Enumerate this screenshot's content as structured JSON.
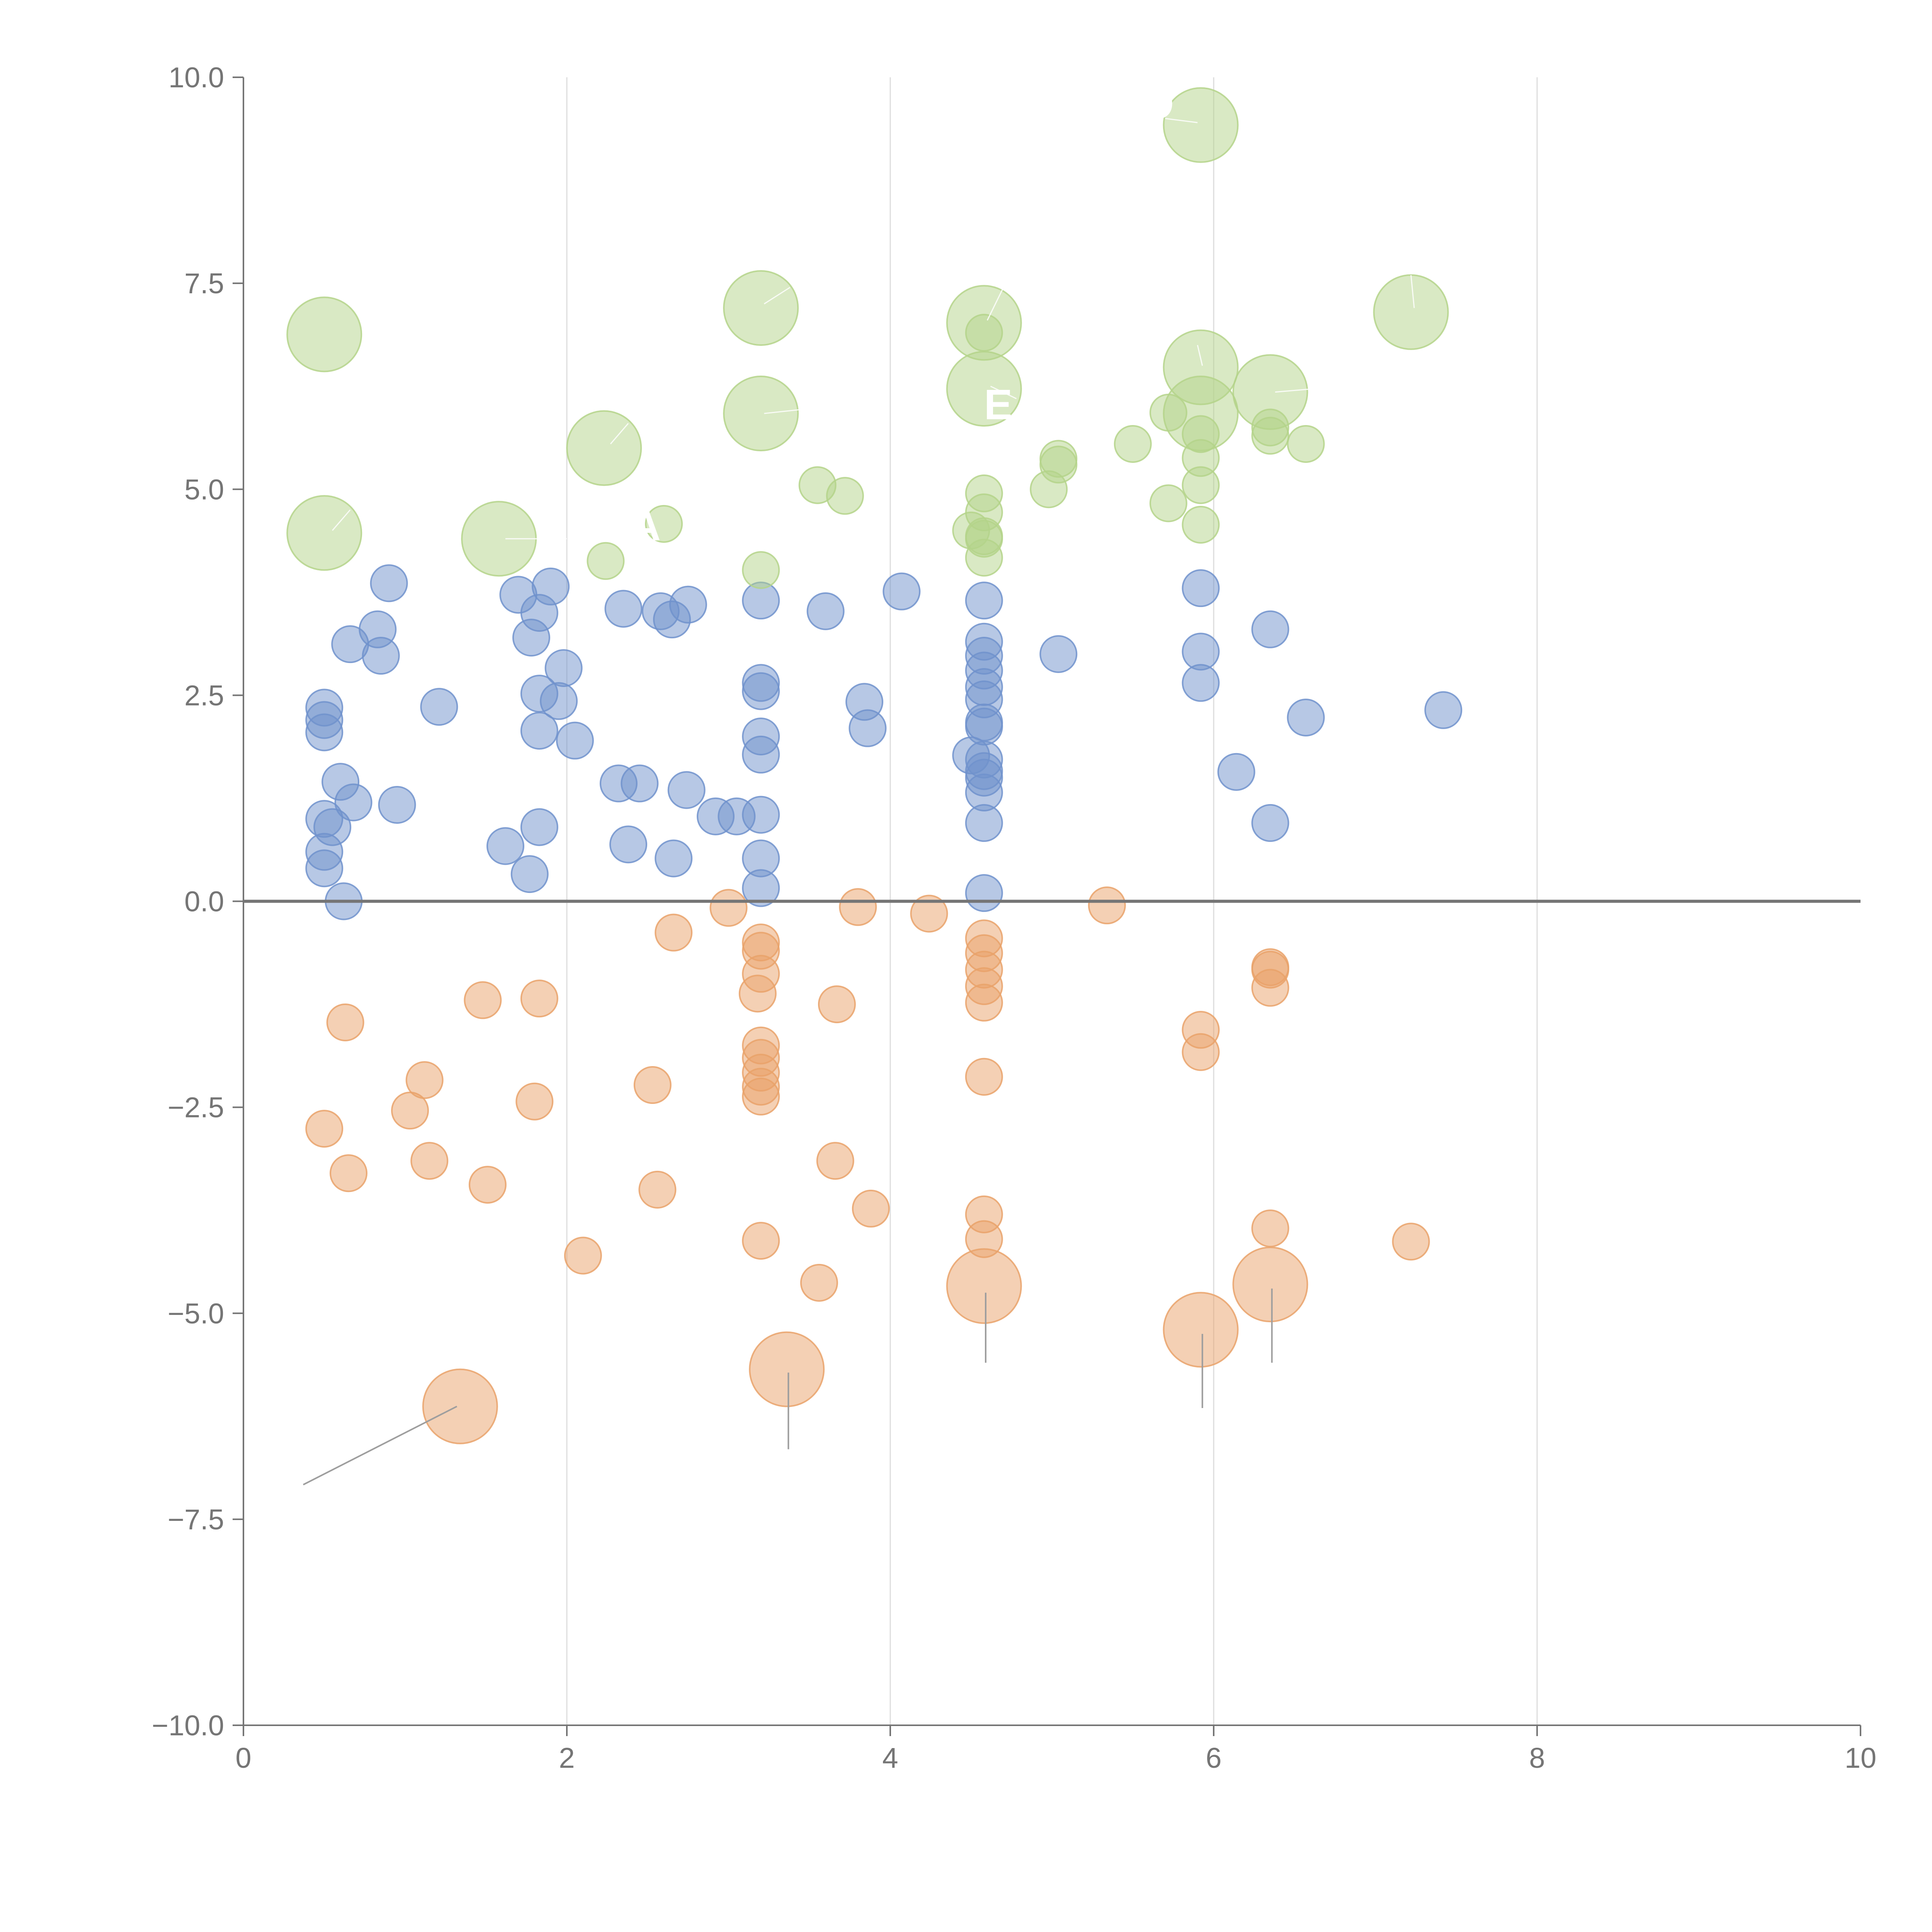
{
  "chart_data": {
    "type": "scatter",
    "subtype": "bubble",
    "title": "",
    "xlabel": "",
    "ylabel": "",
    "xlim": [
      0,
      10
    ],
    "ylim": [
      -10,
      10
    ],
    "x_ticks": [
      "0",
      "2",
      "4",
      "6",
      "8",
      "10"
    ],
    "y_ticks": [
      "10.0",
      "7.5",
      "5.0",
      "2.5",
      "0.0",
      "−2.5",
      "−5.0",
      "−7.5",
      "−10.0"
    ],
    "x_tick_values": [
      0,
      2,
      4,
      6,
      8,
      10
    ],
    "y_tick_values": [
      10,
      7.5,
      5,
      2.5,
      0,
      -2.5,
      -5,
      -7.5,
      -10
    ],
    "vertical_grid": true,
    "horizontal_grid": false,
    "zero_line": true,
    "legend": "none",
    "labels": [
      "O",
      "TA",
      "E"
    ],
    "series": [
      {
        "color": "#7092CC",
        "points": [
          {
            "x": 0.5,
            "y": 2.35
          },
          {
            "x": 0.5,
            "y": 2.2
          },
          {
            "x": 0.5,
            "y": 2.05
          },
          {
            "x": 0.5,
            "y": 1.0
          },
          {
            "x": 0.55,
            "y": 0.9
          },
          {
            "x": 0.5,
            "y": 0.6
          },
          {
            "x": 0.5,
            "y": 0.4
          },
          {
            "x": 0.62,
            "y": 0.0
          },
          {
            "x": 0.6,
            "y": 1.45
          },
          {
            "x": 0.68,
            "y": 1.2
          },
          {
            "x": 0.66,
            "y": 3.12
          },
          {
            "x": 0.83,
            "y": 3.3
          },
          {
            "x": 0.85,
            "y": 2.98
          },
          {
            "x": 0.9,
            "y": 3.86
          },
          {
            "x": 0.95,
            "y": 1.17
          },
          {
            "x": 1.21,
            "y": 2.36
          },
          {
            "x": 1.62,
            "y": 0.67
          },
          {
            "x": 1.77,
            "y": 0.33
          },
          {
            "x": 1.7,
            "y": 3.72
          },
          {
            "x": 1.78,
            "y": 3.2
          },
          {
            "x": 1.83,
            "y": 3.5
          },
          {
            "x": 1.9,
            "y": 3.82
          },
          {
            "x": 1.83,
            "y": 2.52
          },
          {
            "x": 1.95,
            "y": 2.43
          },
          {
            "x": 1.98,
            "y": 2.83
          },
          {
            "x": 1.83,
            "y": 2.07
          },
          {
            "x": 2.05,
            "y": 1.95
          },
          {
            "x": 1.83,
            "y": 0.9
          },
          {
            "x": 2.35,
            "y": 3.55
          },
          {
            "x": 2.58,
            "y": 3.52
          },
          {
            "x": 2.65,
            "y": 3.42
          },
          {
            "x": 2.75,
            "y": 3.6
          },
          {
            "x": 2.32,
            "y": 1.43
          },
          {
            "x": 2.45,
            "y": 1.43
          },
          {
            "x": 2.38,
            "y": 0.69
          },
          {
            "x": 2.66,
            "y": 0.52
          },
          {
            "x": 2.74,
            "y": 1.35
          },
          {
            "x": 2.92,
            "y": 1.03
          },
          {
            "x": 3.05,
            "y": 1.03
          },
          {
            "x": 3.2,
            "y": 3.65
          },
          {
            "x": 3.2,
            "y": 2.65
          },
          {
            "x": 3.2,
            "y": 2.55
          },
          {
            "x": 3.2,
            "y": 2.0
          },
          {
            "x": 3.2,
            "y": 1.78
          },
          {
            "x": 3.2,
            "y": 1.05
          },
          {
            "x": 3.2,
            "y": 0.52
          },
          {
            "x": 3.2,
            "y": 0.16
          },
          {
            "x": 3.6,
            "y": 3.52
          },
          {
            "x": 3.84,
            "y": 2.42
          },
          {
            "x": 3.86,
            "y": 2.1
          },
          {
            "x": 4.07,
            "y": 3.76
          },
          {
            "x": 4.58,
            "y": 3.65
          },
          {
            "x": 4.58,
            "y": 3.15
          },
          {
            "x": 4.58,
            "y": 2.98
          },
          {
            "x": 4.58,
            "y": 2.8
          },
          {
            "x": 4.58,
            "y": 2.6
          },
          {
            "x": 4.58,
            "y": 2.45
          },
          {
            "x": 4.58,
            "y": 2.17
          },
          {
            "x": 4.58,
            "y": 2.12
          },
          {
            "x": 4.5,
            "y": 1.77
          },
          {
            "x": 4.58,
            "y": 1.72
          },
          {
            "x": 4.58,
            "y": 1.58
          },
          {
            "x": 4.58,
            "y": 1.5
          },
          {
            "x": 4.58,
            "y": 1.32
          },
          {
            "x": 4.58,
            "y": 0.95
          },
          {
            "x": 4.58,
            "y": 0.1
          },
          {
            "x": 5.04,
            "y": 3.0
          },
          {
            "x": 5.92,
            "y": 3.8
          },
          {
            "x": 5.92,
            "y": 3.03
          },
          {
            "x": 5.92,
            "y": 2.65
          },
          {
            "x": 6.14,
            "y": 1.57
          },
          {
            "x": 6.35,
            "y": 3.3
          },
          {
            "x": 6.35,
            "y": 0.95
          },
          {
            "x": 6.57,
            "y": 2.23
          },
          {
            "x": 7.42,
            "y": 2.32
          }
        ]
      },
      {
        "color": "#E9A26A",
        "points": [
          {
            "x": 0.5,
            "y": -2.76
          },
          {
            "x": 0.63,
            "y": -1.47
          },
          {
            "x": 0.65,
            "y": -3.3
          },
          {
            "x": 1.03,
            "y": -2.54
          },
          {
            "x": 1.12,
            "y": -2.17
          },
          {
            "x": 1.15,
            "y": -3.15
          },
          {
            "x": 1.48,
            "y": -1.2
          },
          {
            "x": 1.51,
            "y": -3.44
          },
          {
            "x": 1.8,
            "y": -2.43
          },
          {
            "x": 1.83,
            "y": -1.18
          },
          {
            "x": 2.1,
            "y": -4.3
          },
          {
            "x": 2.53,
            "y": -2.23
          },
          {
            "x": 2.56,
            "y": -3.5
          },
          {
            "x": 2.66,
            "y": -0.38
          },
          {
            "x": 3.0,
            "y": -0.08
          },
          {
            "x": 3.2,
            "y": -0.5
          },
          {
            "x": 3.2,
            "y": -0.6
          },
          {
            "x": 3.2,
            "y": -0.88
          },
          {
            "x": 3.18,
            "y": -1.12
          },
          {
            "x": 3.2,
            "y": -1.75
          },
          {
            "x": 3.2,
            "y": -1.9
          },
          {
            "x": 3.2,
            "y": -2.08
          },
          {
            "x": 3.2,
            "y": -2.25
          },
          {
            "x": 3.2,
            "y": -2.37
          },
          {
            "x": 3.2,
            "y": -4.12
          },
          {
            "x": 3.56,
            "y": -4.63
          },
          {
            "x": 3.66,
            "y": -3.15
          },
          {
            "x": 3.67,
            "y": -1.25
          },
          {
            "x": 3.8,
            "y": -0.07
          },
          {
            "x": 3.88,
            "y": -3.73
          },
          {
            "x": 4.24,
            "y": -0.15
          },
          {
            "x": 4.58,
            "y": -0.45
          },
          {
            "x": 4.58,
            "y": -0.63
          },
          {
            "x": 4.58,
            "y": -0.83
          },
          {
            "x": 4.58,
            "y": -1.03
          },
          {
            "x": 4.58,
            "y": -1.23
          },
          {
            "x": 4.58,
            "y": -2.13
          },
          {
            "x": 4.58,
            "y": -3.8
          },
          {
            "x": 4.58,
            "y": -4.1
          },
          {
            "x": 5.34,
            "y": -0.05
          },
          {
            "x": 5.92,
            "y": -1.56
          },
          {
            "x": 5.92,
            "y": -1.83
          },
          {
            "x": 6.35,
            "y": -0.8
          },
          {
            "x": 6.35,
            "y": -0.83
          },
          {
            "x": 6.35,
            "y": -1.05
          },
          {
            "x": 6.35,
            "y": -3.97
          },
          {
            "x": 7.22,
            "y": -4.13
          }
        ]
      },
      {
        "color": "#B4D48A",
        "points": [
          {
            "x": 2.24,
            "y": 4.13
          },
          {
            "x": 2.6,
            "y": 4.58
          },
          {
            "x": 3.2,
            "y": 4.02
          },
          {
            "x": 3.55,
            "y": 5.05
          },
          {
            "x": 3.72,
            "y": 4.92
          },
          {
            "x": 4.58,
            "y": 6.9
          },
          {
            "x": 4.58,
            "y": 4.95
          },
          {
            "x": 4.58,
            "y": 4.72
          },
          {
            "x": 4.5,
            "y": 4.5
          },
          {
            "x": 4.58,
            "y": 4.43
          },
          {
            "x": 4.58,
            "y": 4.4
          },
          {
            "x": 4.58,
            "y": 4.17
          },
          {
            "x": 4.98,
            "y": 5.0
          },
          {
            "x": 5.04,
            "y": 5.37
          },
          {
            "x": 5.04,
            "y": 5.3
          },
          {
            "x": 5.5,
            "y": 5.55
          },
          {
            "x": 5.72,
            "y": 5.93
          },
          {
            "x": 5.72,
            "y": 4.83
          },
          {
            "x": 5.92,
            "y": 5.67
          },
          {
            "x": 5.92,
            "y": 5.38
          },
          {
            "x": 5.92,
            "y": 5.05
          },
          {
            "x": 5.92,
            "y": 4.57
          },
          {
            "x": 6.35,
            "y": 5.75
          },
          {
            "x": 6.35,
            "y": 5.65
          },
          {
            "x": 6.57,
            "y": 5.55
          }
        ]
      },
      {
        "color": "#B4D48A",
        "large": true,
        "points": [
          {
            "x": 0.5,
            "y": 6.88
          },
          {
            "x": 0.5,
            "y": 4.47
          },
          {
            "x": 1.58,
            "y": 4.4
          },
          {
            "x": 2.23,
            "y": 5.5
          },
          {
            "x": 3.2,
            "y": 7.2
          },
          {
            "x": 3.2,
            "y": 5.92
          },
          {
            "x": 4.58,
            "y": 7.02
          },
          {
            "x": 4.58,
            "y": 6.22
          },
          {
            "x": 5.92,
            "y": 9.42
          },
          {
            "x": 5.92,
            "y": 6.48
          },
          {
            "x": 5.92,
            "y": 5.92
          },
          {
            "x": 6.35,
            "y": 6.18
          },
          {
            "x": 7.22,
            "y": 7.15
          }
        ]
      },
      {
        "color": "#E9A26A",
        "large": true,
        "points": [
          {
            "x": 1.34,
            "y": -6.13
          },
          {
            "x": 3.36,
            "y": -5.68
          },
          {
            "x": 4.58,
            "y": -4.67
          },
          {
            "x": 5.92,
            "y": -5.2
          },
          {
            "x": 6.35,
            "y": -4.65
          }
        ]
      }
    ]
  }
}
